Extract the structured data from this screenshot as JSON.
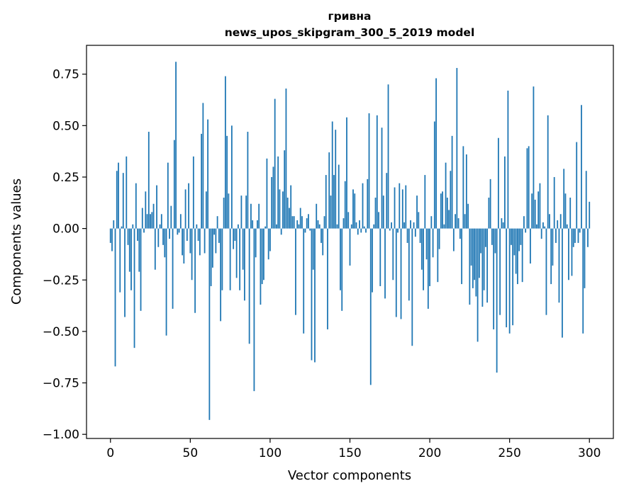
{
  "chart_data": {
    "type": "bar",
    "title": "гривна",
    "subtitle": "news_upos_skipgram_300_5_2019 model",
    "xlabel": "Vector components",
    "ylabel": "Components values",
    "xlim": [
      -15,
      315
    ],
    "ylim": [
      -1.02,
      0.89
    ],
    "x_ticks": [
      0,
      50,
      100,
      150,
      200,
      250,
      300
    ],
    "y_ticks": [
      -1.0,
      -0.75,
      -0.5,
      -0.25,
      0.0,
      0.25,
      0.5,
      0.75
    ],
    "y_tick_labels": [
      "−1.00",
      "−0.75",
      "−0.50",
      "−0.25",
      "0.00",
      "0.25",
      "0.50",
      "0.75"
    ],
    "grid": false,
    "bar_color": "#1f77b4",
    "values": [
      -0.07,
      -0.11,
      0.04,
      -0.67,
      0.28,
      0.32,
      -0.31,
      0.01,
      0.27,
      -0.43,
      0.35,
      -0.08,
      -0.21,
      -0.3,
      0.02,
      -0.58,
      0.22,
      -0.06,
      -0.21,
      -0.4,
      0.1,
      -0.02,
      0.18,
      0.07,
      0.47,
      0.07,
      0.08,
      0.12,
      -0.2,
      0.21,
      -0.09,
      0.02,
      0.07,
      -0.08,
      -0.14,
      -0.52,
      0.32,
      -0.05,
      0.11,
      -0.39,
      0.43,
      0.81,
      -0.03,
      -0.02,
      0.07,
      -0.13,
      -0.17,
      0.19,
      -0.06,
      0.22,
      -0.12,
      -0.25,
      0.35,
      -0.41,
      0.02,
      -0.06,
      -0.13,
      0.46,
      0.61,
      -0.12,
      0.18,
      0.53,
      -0.93,
      -0.28,
      -0.19,
      -0.03,
      -0.12,
      0.06,
      -0.07,
      -0.45,
      -0.3,
      0.15,
      0.74,
      0.45,
      0.17,
      -0.3,
      0.5,
      -0.1,
      -0.06,
      -0.24,
      0.02,
      -0.3,
      0.16,
      -0.2,
      -0.35,
      0.16,
      0.47,
      -0.56,
      0.12,
      0.04,
      -0.79,
      -0.14,
      0.04,
      0.12,
      -0.37,
      -0.27,
      -0.25,
      0.01,
      0.34,
      -0.15,
      -0.11,
      0.25,
      0.3,
      0.63,
      0.02,
      0.35,
      0.19,
      -0.03,
      0.18,
      0.38,
      0.68,
      0.15,
      0.1,
      0.21,
      0.06,
      0.06,
      -0.42,
      0.04,
      0.02,
      0.1,
      0.06,
      -0.51,
      -0.02,
      0.05,
      0.07,
      -0.01,
      -0.64,
      -0.2,
      -0.65,
      0.12,
      0.04,
      0.02,
      -0.07,
      -0.13,
      0.06,
      0.26,
      -0.49,
      0.37,
      0.16,
      0.52,
      0.26,
      0.48,
      0.02,
      0.31,
      -0.3,
      -0.4,
      0.05,
      0.23,
      0.54,
      0.08,
      -0.18,
      0.02,
      0.19,
      0.17,
      0.03,
      -0.03,
      0.04,
      -0.02,
      0.22,
      0.01,
      -0.02,
      0.24,
      0.56,
      -0.76,
      -0.31,
      0.02,
      0.15,
      0.55,
      0.08,
      -0.28,
      0.49,
      0.16,
      -0.34,
      0.27,
      0.7,
      -0.01,
      0.03,
      -0.25,
      0.2,
      -0.43,
      -0.02,
      0.22,
      -0.44,
      0.19,
      0.03,
      0.21,
      -0.07,
      -0.35,
      0.04,
      -0.57,
      0.03,
      -0.04,
      0.16,
      0.08,
      -0.07,
      -0.2,
      -0.3,
      0.26,
      -0.15,
      -0.39,
      -0.28,
      0.06,
      -0.14,
      0.52,
      0.73,
      -0.26,
      -0.1,
      0.17,
      0.18,
      0.02,
      0.32,
      0.15,
      0.09,
      0.28,
      0.45,
      -0.11,
      0.07,
      0.78,
      0.05,
      -0.05,
      -0.27,
      0.4,
      0.07,
      0.36,
      0.12,
      -0.37,
      -0.18,
      -0.29,
      -0.25,
      -0.33,
      -0.55,
      -0.24,
      -0.12,
      -0.38,
      -0.3,
      -0.09,
      -0.36,
      0.15,
      0.24,
      -0.08,
      -0.49,
      -0.12,
      -0.7,
      0.44,
      -0.42,
      0.05,
      0.03,
      0.35,
      -0.48,
      0.67,
      -0.51,
      -0.08,
      -0.47,
      -0.13,
      -0.22,
      -0.27,
      -0.11,
      -0.08,
      -0.26,
      0.06,
      -0.02,
      0.39,
      0.4,
      -0.17,
      0.17,
      0.69,
      0.14,
      0.02,
      0.18,
      0.22,
      -0.05,
      0.03,
      0.01,
      -0.42,
      0.55,
      0.07,
      -0.27,
      -0.18,
      0.25,
      -0.07,
      0.04,
      -0.36,
      0.07,
      -0.53,
      0.29,
      0.17,
      0.02,
      -0.25,
      0.15,
      -0.23,
      -0.09,
      -0.07,
      0.42,
      -0.07,
      -0.02,
      0.6,
      -0.51,
      -0.29,
      0.28,
      -0.09,
      0.13
    ]
  }
}
